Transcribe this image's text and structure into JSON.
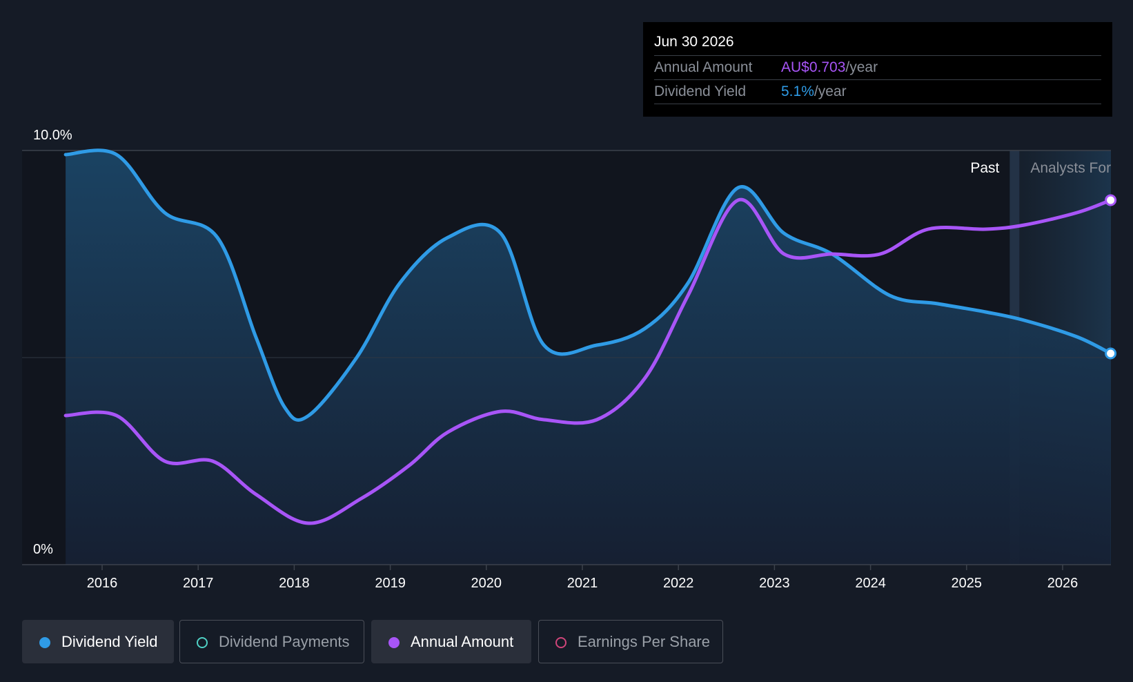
{
  "tooltip": {
    "date": "Jun 30 2026",
    "rows": [
      {
        "label": "Annual Amount",
        "value": "AU$0.703",
        "unit": "/year"
      },
      {
        "label": "Dividend Yield",
        "value": "5.1%",
        "unit": "/year"
      }
    ]
  },
  "legend": [
    {
      "label": "Dividend Yield",
      "active": true,
      "color": "#2f9be6",
      "filled": true
    },
    {
      "label": "Dividend Payments",
      "active": false,
      "color": "#4fd1c5",
      "filled": false
    },
    {
      "label": "Annual Amount",
      "active": true,
      "color": "#a855f7",
      "filled": true
    },
    {
      "label": "Earnings Per Share",
      "active": false,
      "color": "#d0457a",
      "filled": false
    }
  ],
  "chart_data": {
    "type": "line",
    "y_axis_labels": [
      "10.0%",
      "0%"
    ],
    "ylim": [
      0,
      10
    ],
    "x_tick_labels": [
      "2016",
      "2017",
      "2018",
      "2019",
      "2020",
      "2021",
      "2022",
      "2023",
      "2024",
      "2025",
      "2026"
    ],
    "region_labels": {
      "past": "Past",
      "forecast": "Analysts Forecasts"
    },
    "forecast_start": 2025.55,
    "grid": "horizontal",
    "series": [
      {
        "name": "Dividend Yield",
        "color": "#2f9be6",
        "x": [
          2015.62,
          2016.15,
          2016.65,
          2017.2,
          2017.6,
          2017.9,
          2018.15,
          2018.65,
          2019.1,
          2019.6,
          2020.15,
          2020.6,
          2021.15,
          2021.65,
          2022.1,
          2022.62,
          2023.1,
          2023.6,
          2024.2,
          2024.7,
          2025.2,
          2025.6,
          2026.15,
          2026.5
        ],
        "y": [
          9.9,
          9.9,
          8.5,
          7.9,
          5.5,
          3.8,
          3.6,
          5.0,
          6.8,
          7.9,
          8.0,
          5.3,
          5.3,
          5.7,
          6.8,
          9.1,
          8.0,
          7.5,
          6.5,
          6.3,
          6.1,
          5.9,
          5.5,
          5.1
        ]
      },
      {
        "name": "Annual Amount",
        "color": "#a855f7",
        "x": [
          2015.62,
          2016.15,
          2016.65,
          2017.15,
          2017.6,
          2018.15,
          2018.7,
          2019.2,
          2019.6,
          2020.15,
          2020.6,
          2021.15,
          2021.65,
          2022.1,
          2022.62,
          2023.1,
          2023.6,
          2024.1,
          2024.6,
          2025.2,
          2025.6,
          2026.15,
          2026.5
        ],
        "y": [
          3.6,
          3.6,
          2.5,
          2.5,
          1.7,
          1.0,
          1.6,
          2.4,
          3.2,
          3.7,
          3.5,
          3.5,
          4.5,
          6.5,
          8.8,
          7.5,
          7.5,
          7.5,
          8.1,
          8.1,
          8.2,
          8.5,
          8.8
        ]
      }
    ]
  }
}
